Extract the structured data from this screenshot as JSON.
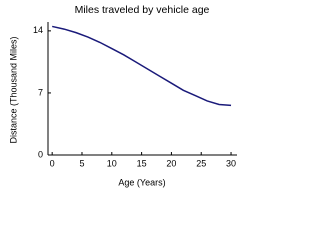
{
  "chart_data": {
    "type": "line",
    "title": "Miles traveled by vehicle age",
    "x_label": "Age (Years)",
    "y_label": "Distance (Thousand Miles)",
    "x": [
      0,
      2,
      4,
      6,
      8,
      10,
      12,
      14,
      16,
      18,
      20,
      22,
      24,
      26,
      28,
      30
    ],
    "series": [
      {
        "color": "#1a1a7a",
        "values": [
          14.5,
          14.2,
          13.8,
          13.3,
          12.7,
          12.0,
          11.3,
          10.5,
          9.7,
          8.9,
          8.1,
          7.3,
          6.7,
          6.1,
          5.7,
          5.6
        ]
      }
    ],
    "xlim": [
      -0.7,
      31
    ],
    "ylim": [
      0,
      15
    ],
    "xticks": [
      0,
      5,
      10,
      15,
      20,
      25,
      30
    ],
    "yticks": [
      0,
      7,
      14
    ]
  }
}
